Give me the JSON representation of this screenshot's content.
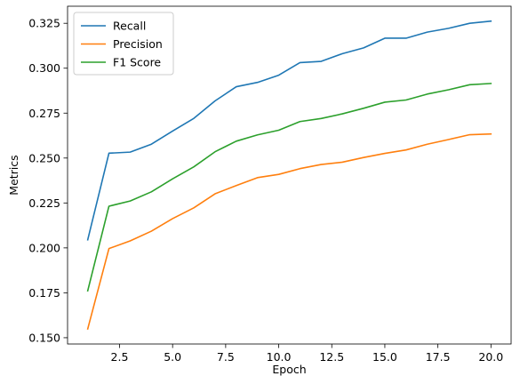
{
  "chart_data": {
    "type": "line",
    "title": "",
    "xlabel": "Epoch",
    "ylabel": "Metrics",
    "xlim": [
      0.05,
      20.95
    ],
    "ylim": [
      0.1465,
      0.3345
    ],
    "x_ticks": [
      2.5,
      5.0,
      7.5,
      10.0,
      12.5,
      15.0,
      17.5,
      20.0
    ],
    "x_tick_labels": [
      "2.5",
      "5.0",
      "7.5",
      "10.0",
      "12.5",
      "15.0",
      "17.5",
      "20.0"
    ],
    "y_ticks": [
      0.15,
      0.175,
      0.2,
      0.225,
      0.25,
      0.275,
      0.3,
      0.325
    ],
    "y_tick_labels": [
      "0.150",
      "0.175",
      "0.200",
      "0.225",
      "0.250",
      "0.275",
      "0.300",
      "0.325"
    ],
    "grid": false,
    "legend_position": "top-left",
    "x": [
      1,
      2,
      3,
      4,
      5,
      6,
      7,
      8,
      9,
      10,
      11,
      12,
      13,
      14,
      15,
      16,
      17,
      18,
      19,
      20
    ],
    "series": [
      {
        "name": "Recall",
        "color": "#1f77b4",
        "values": [
          0.2045,
          0.2527,
          0.2533,
          0.2577,
          0.265,
          0.2721,
          0.2818,
          0.2897,
          0.2921,
          0.2961,
          0.3031,
          0.3038,
          0.3081,
          0.3113,
          0.3167,
          0.3167,
          0.3201,
          0.3222,
          0.325,
          0.3262
        ]
      },
      {
        "name": "Precision",
        "color": "#ff7f0e",
        "values": [
          0.1549,
          0.1996,
          0.2039,
          0.2093,
          0.2163,
          0.2223,
          0.2301,
          0.2347,
          0.2391,
          0.2409,
          0.2441,
          0.2464,
          0.2477,
          0.2503,
          0.2526,
          0.2545,
          0.2577,
          0.2603,
          0.263,
          0.2634
        ]
      },
      {
        "name": "F1 Score",
        "color": "#2ca02c",
        "values": [
          0.1761,
          0.2232,
          0.2261,
          0.2312,
          0.2384,
          0.2451,
          0.2535,
          0.2594,
          0.2629,
          0.2655,
          0.2703,
          0.272,
          0.2746,
          0.2777,
          0.2811,
          0.2823,
          0.2856,
          0.288,
          0.2908,
          0.2915
        ]
      }
    ]
  }
}
